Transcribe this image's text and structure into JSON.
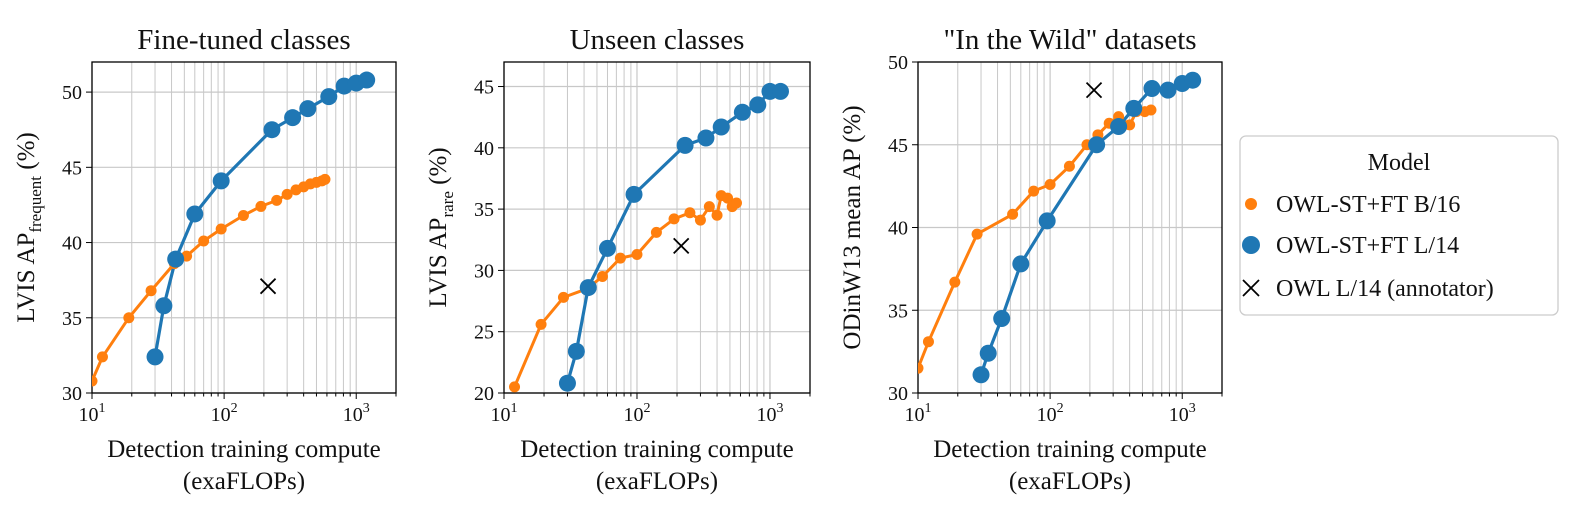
{
  "chart_data": [
    {
      "type": "line",
      "title": "Fine-tuned classes",
      "xlabel": [
        "Detection training compute",
        "(exaFLOPs)"
      ],
      "ylabel": {
        "main": "LVIS AP",
        "sub": "frequent",
        "suffix": " (%)"
      },
      "xscale": "log",
      "xlim": [
        10,
        2000
      ],
      "ylim": [
        30,
        52
      ],
      "xticks": [
        {
          "base": "10",
          "exp": "1"
        },
        {
          "base": "10",
          "exp": "2"
        },
        {
          "base": "10",
          "exp": "3"
        }
      ],
      "yticks": [
        30,
        35,
        40,
        45,
        50
      ],
      "grid": true,
      "series": [
        {
          "name": "OWL-ST+FT B/16",
          "x": [
            10,
            12,
            19,
            28,
            42,
            52,
            70,
            95,
            140,
            190,
            250,
            300,
            350,
            400,
            450,
            500,
            550,
            580
          ],
          "y": [
            30.8,
            32.4,
            35.0,
            36.8,
            38.6,
            39.1,
            40.1,
            40.9,
            41.8,
            42.4,
            42.8,
            43.2,
            43.5,
            43.7,
            43.9,
            44.0,
            44.1,
            44.2
          ]
        },
        {
          "name": "OWL-ST+FT L/14",
          "x": [
            30,
            35,
            43,
            60,
            95,
            230,
            330,
            430,
            620,
            810,
            1000,
            1200
          ],
          "y": [
            32.4,
            35.8,
            38.9,
            41.9,
            44.1,
            47.5,
            48.3,
            48.9,
            49.7,
            50.4,
            50.6,
            50.8
          ]
        },
        {
          "name": "OWL L/14 (annotator)",
          "x": [
            215
          ],
          "y": [
            37.1
          ]
        }
      ]
    },
    {
      "type": "line",
      "title": "Unseen classes",
      "xlabel": [
        "Detection training compute",
        "(exaFLOPs)"
      ],
      "ylabel": {
        "main": "LVIS AP",
        "sub": "rare",
        "suffix": " (%)"
      },
      "xscale": "log",
      "xlim": [
        10,
        2000
      ],
      "ylim": [
        20,
        47
      ],
      "xticks": [
        {
          "base": "10",
          "exp": "1"
        },
        {
          "base": "10",
          "exp": "2"
        },
        {
          "base": "10",
          "exp": "3"
        }
      ],
      "yticks": [
        20,
        25,
        30,
        35,
        40,
        45
      ],
      "grid": true,
      "series": [
        {
          "name": "OWL-ST+FT B/16",
          "x": [
            12,
            19,
            28,
            42,
            55,
            75,
            100,
            140,
            190,
            250,
            300,
            350,
            400,
            430,
            480,
            520,
            560
          ],
          "y": [
            20.5,
            25.6,
            27.8,
            28.5,
            29.5,
            31.0,
            31.3,
            33.1,
            34.2,
            34.7,
            34.1,
            35.2,
            34.5,
            36.1,
            35.9,
            35.2,
            35.5
          ]
        },
        {
          "name": "OWL-ST+FT L/14",
          "x": [
            30,
            35,
            43,
            60,
            95,
            230,
            330,
            430,
            620,
            810,
            1000,
            1200
          ],
          "y": [
            20.8,
            23.4,
            28.6,
            31.8,
            36.2,
            40.2,
            40.8,
            41.7,
            42.9,
            43.5,
            44.6,
            44.6
          ]
        },
        {
          "name": "OWL L/14 (annotator)",
          "x": [
            215
          ],
          "y": [
            32.0
          ]
        }
      ]
    },
    {
      "type": "line",
      "title": "\"In the Wild\" datasets",
      "xlabel": [
        "Detection training compute",
        "(exaFLOPs)"
      ],
      "ylabel": {
        "main": "ODinW13 mean AP (%)",
        "sub": "",
        "suffix": ""
      },
      "xscale": "log",
      "xlim": [
        10,
        2000
      ],
      "ylim": [
        30,
        50
      ],
      "xticks": [
        {
          "base": "10",
          "exp": "1"
        },
        {
          "base": "10",
          "exp": "2"
        },
        {
          "base": "10",
          "exp": "3"
        }
      ],
      "yticks": [
        30,
        35,
        40,
        45,
        50
      ],
      "grid": true,
      "series": [
        {
          "name": "OWL-ST+FT B/16",
          "x": [
            10,
            12,
            19,
            28,
            52,
            75,
            100,
            140,
            190,
            230,
            280,
            330,
            400,
            450,
            520,
            580
          ],
          "y": [
            31.5,
            33.1,
            36.7,
            39.6,
            40.8,
            42.2,
            42.6,
            43.7,
            45.0,
            45.6,
            46.3,
            46.7,
            46.2,
            47.0,
            47.0,
            47.1
          ]
        },
        {
          "name": "OWL-ST+FT L/14",
          "x": [
            30,
            34,
            43,
            60,
            95,
            225,
            330,
            430,
            590,
            780,
            1000,
            1200
          ],
          "y": [
            31.1,
            32.4,
            34.5,
            37.8,
            40.4,
            45.0,
            46.1,
            47.2,
            48.4,
            48.3,
            48.7,
            48.9
          ]
        },
        {
          "name": "OWL L/14 (annotator)",
          "x": [
            215
          ],
          "y": [
            48.3
          ]
        }
      ]
    }
  ],
  "legend": {
    "title": "Model",
    "position": "right",
    "entries": [
      {
        "label": "OWL-ST+FT B/16",
        "marker": "circle",
        "color": "#ff7f0e"
      },
      {
        "label": "OWL-ST+FT L/14",
        "marker": "circle",
        "color": "#1f77b4"
      },
      {
        "label": "OWL L/14 (annotator)",
        "marker": "x",
        "color": "#000000"
      }
    ]
  },
  "colors": {
    "b16": "#ff7f0e",
    "l14": "#1f77b4",
    "annotator": "#000000",
    "grid": "#c8c8c8"
  }
}
